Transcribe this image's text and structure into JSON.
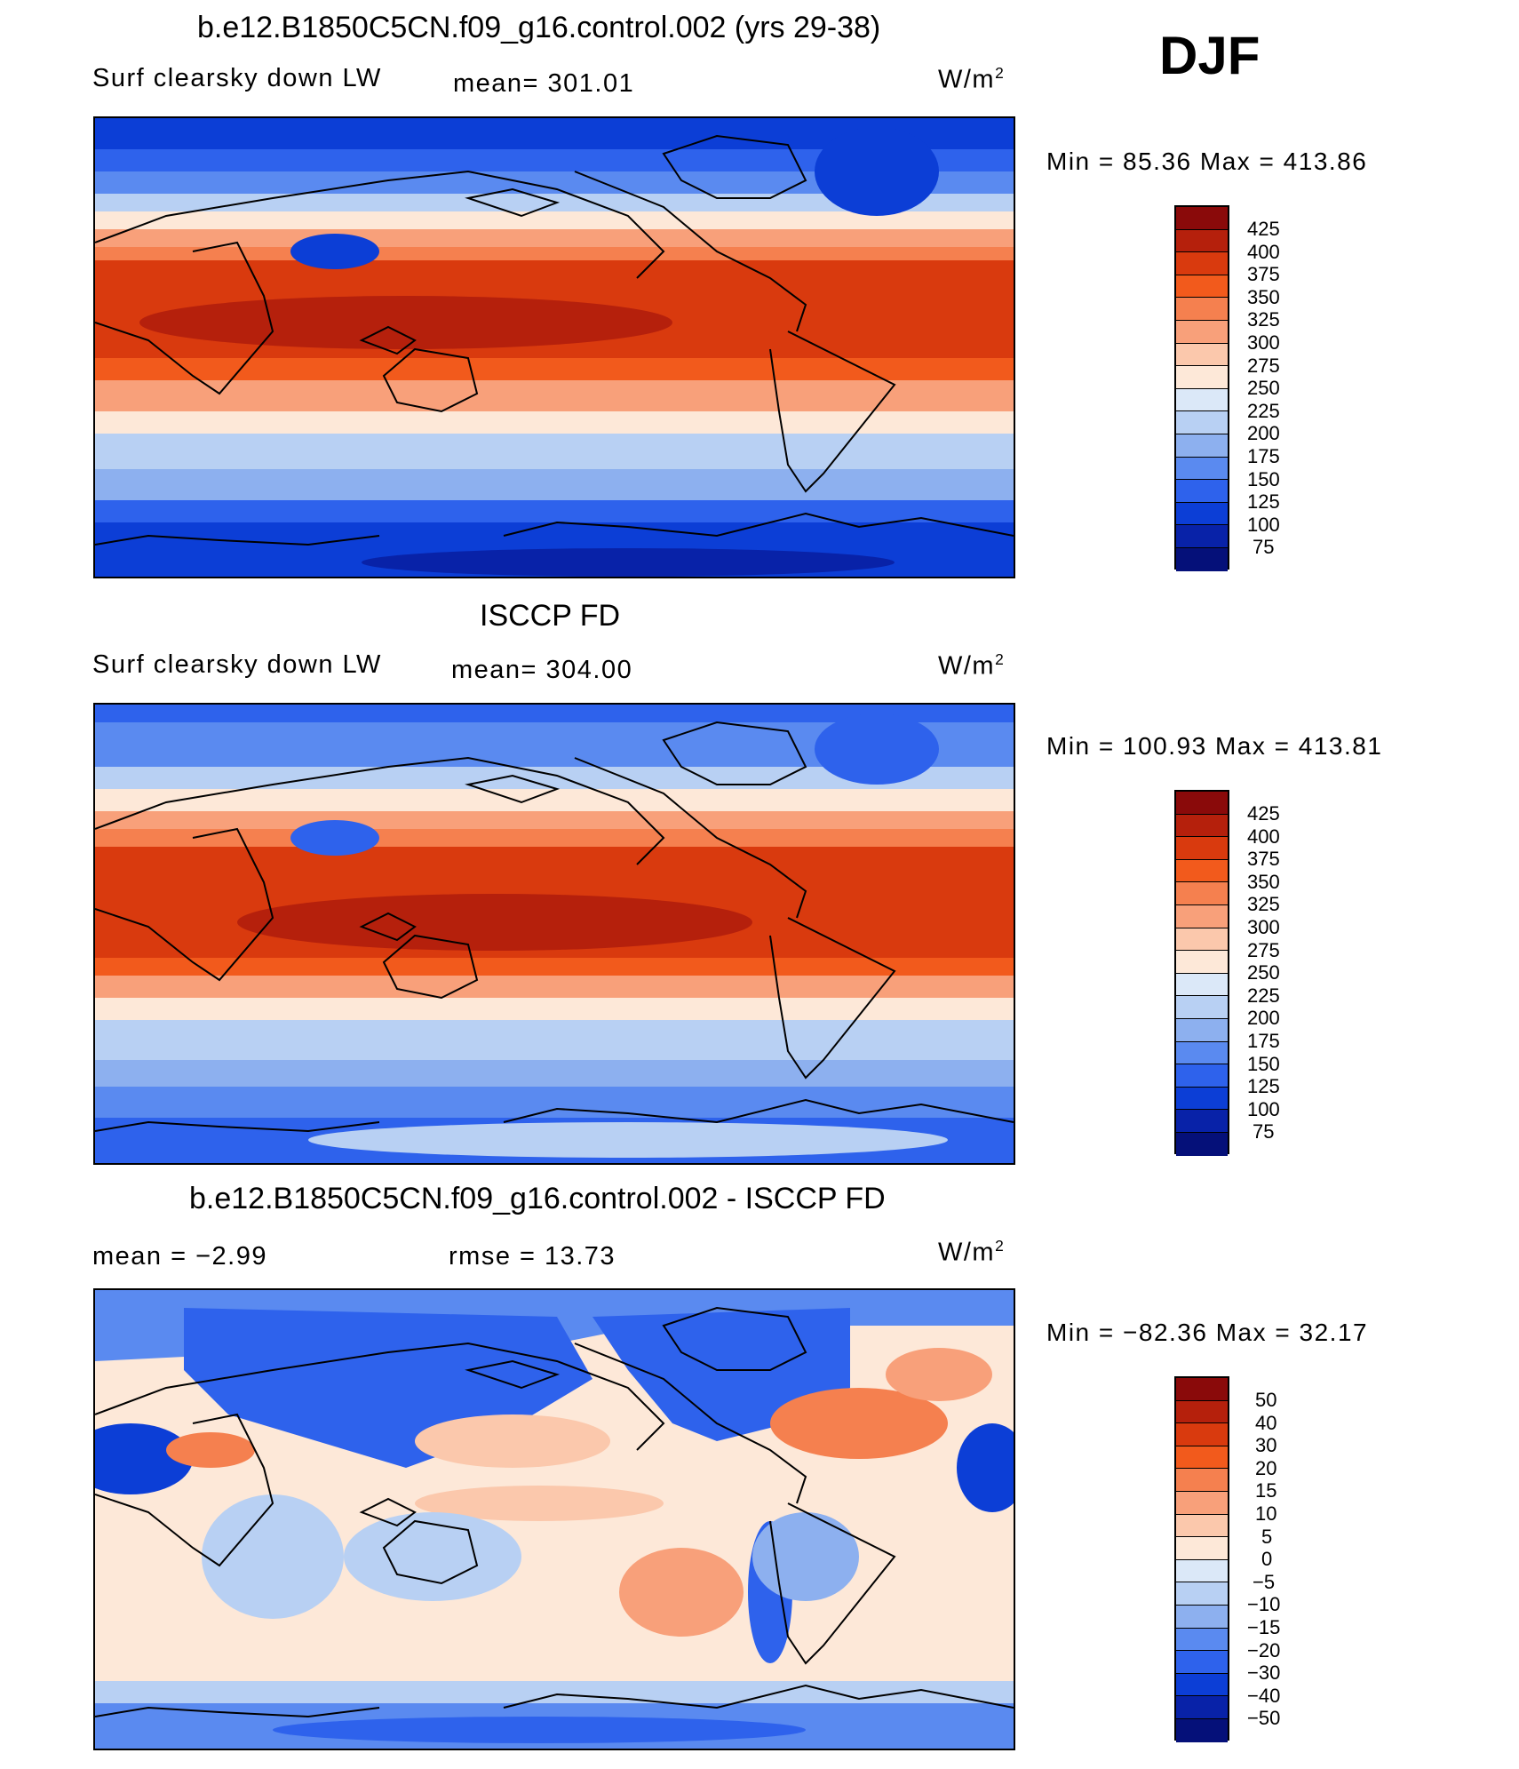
{
  "header": {
    "season": "DJF"
  },
  "panels": [
    {
      "title": "b.e12.B1850C5CN.f09_g16.control.002 (yrs 29-38)",
      "left_label": "Surf clearsky down LW",
      "mid_label": "mean=  301.01",
      "units": "W/m",
      "units_sup": "2",
      "minmax": "Min =   85.36 Max = 413.86",
      "colorbar_labels": [
        "425",
        "400",
        "375",
        "350",
        "325",
        "300",
        "275",
        "250",
        "225",
        "200",
        "175",
        "150",
        "125",
        "100",
        "75"
      ]
    },
    {
      "title": "ISCCP FD",
      "left_label": "Surf clearsky down LW",
      "mid_label": "mean=  304.00",
      "units": "W/m",
      "units_sup": "2",
      "minmax": "Min = 100.93 Max = 413.81",
      "colorbar_labels": [
        "425",
        "400",
        "375",
        "350",
        "325",
        "300",
        "275",
        "250",
        "225",
        "200",
        "175",
        "150",
        "125",
        "100",
        "75"
      ]
    },
    {
      "title": "b.e12.B1850C5CN.f09_g16.control.002 - ISCCP FD",
      "left_label": "mean =    −2.99",
      "mid_label": "rmse =    13.73",
      "units": "W/m",
      "units_sup": "2",
      "minmax": "Min = −82.36 Max =   32.17",
      "colorbar_labels": [
        "50",
        "40",
        "30",
        "20",
        "15",
        "10",
        "5",
        "0",
        "−5",
        "−10",
        "−15",
        "−20",
        "−30",
        "−40",
        "−50"
      ]
    }
  ],
  "colors": {
    "bar": [
      "#8a0a0a",
      "#b5200c",
      "#d93a0e",
      "#f25a1c",
      "#f5804f",
      "#f8a07a",
      "#fbc8ac",
      "#fde8d8",
      "#dbe8f8",
      "#b8d0f3",
      "#8db0ef",
      "#5a8af0",
      "#2e62ec",
      "#0c3ed6",
      "#0822a8",
      "#051079"
    ]
  }
}
